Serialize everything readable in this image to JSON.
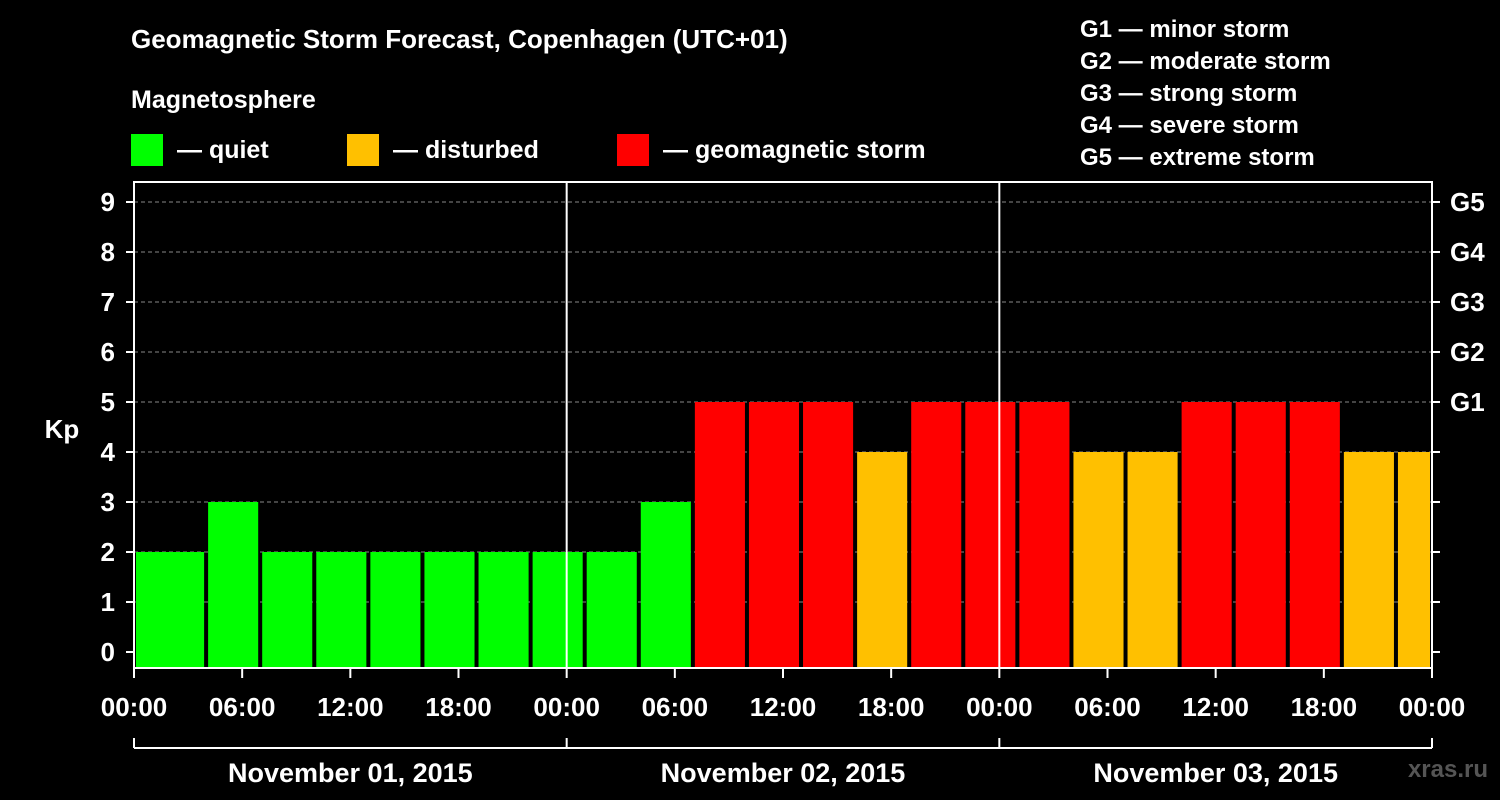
{
  "title": "Geomagnetic Storm Forecast, Copenhagen (UTC+01)",
  "subtitle": "Magnetosphere",
  "legend": [
    {
      "label": "— quiet",
      "color": "#00ff00"
    },
    {
      "label": "— disturbed",
      "color": "#ffc000"
    },
    {
      "label": "— geomagnetic storm",
      "color": "#ff0000"
    }
  ],
  "g_scale": [
    "G1 — minor storm",
    "G2 — moderate storm",
    "G3 — strong storm",
    "G4 — severe storm",
    "G5 — extreme storm"
  ],
  "watermark": "xras.ru",
  "chart_data": {
    "type": "bar",
    "ylabel": "Kp",
    "ylim": [
      0,
      9
    ],
    "yticks": [
      0,
      1,
      2,
      3,
      4,
      5,
      6,
      7,
      8,
      9
    ],
    "right_ticks": [
      {
        "kp": 5,
        "label": "G1"
      },
      {
        "kp": 6,
        "label": "G2"
      },
      {
        "kp": 7,
        "label": "G3"
      },
      {
        "kp": 8,
        "label": "G4"
      },
      {
        "kp": 9,
        "label": "G5"
      }
    ],
    "x_range_hours": [
      0,
      72
    ],
    "xtick_labels": [
      "00:00",
      "06:00",
      "12:00",
      "18:00",
      "00:00",
      "06:00",
      "12:00",
      "18:00",
      "00:00",
      "06:00",
      "12:00",
      "18:00",
      "00:00"
    ],
    "days": [
      "November 01, 2015",
      "November 02, 2015",
      "November 03, 2015"
    ],
    "grid": "horizontal dashed",
    "bar_interval_hours": 3,
    "bars": [
      {
        "start": 0,
        "kp": 2,
        "status": "quiet"
      },
      {
        "start": 1,
        "kp": 2,
        "status": "quiet"
      },
      {
        "start": 4,
        "kp": 3,
        "status": "quiet"
      },
      {
        "start": 7,
        "kp": 2,
        "status": "quiet"
      },
      {
        "start": 10,
        "kp": 2,
        "status": "quiet"
      },
      {
        "start": 13,
        "kp": 2,
        "status": "quiet"
      },
      {
        "start": 16,
        "kp": 2,
        "status": "quiet"
      },
      {
        "start": 19,
        "kp": 2,
        "status": "quiet"
      },
      {
        "start": 22,
        "kp": 2,
        "status": "quiet"
      },
      {
        "start": 25,
        "kp": 2,
        "status": "quiet"
      },
      {
        "start": 28,
        "kp": 3,
        "status": "quiet"
      },
      {
        "start": 31,
        "kp": 5,
        "status": "storm"
      },
      {
        "start": 34,
        "kp": 5,
        "status": "storm"
      },
      {
        "start": 37,
        "kp": 5,
        "status": "storm"
      },
      {
        "start": 40,
        "kp": 4,
        "status": "disturbed"
      },
      {
        "start": 43,
        "kp": 5,
        "status": "storm"
      },
      {
        "start": 46,
        "kp": 5,
        "status": "storm"
      },
      {
        "start": 49,
        "kp": 5,
        "status": "storm"
      },
      {
        "start": 52,
        "kp": 4,
        "status": "disturbed"
      },
      {
        "start": 55,
        "kp": 4,
        "status": "disturbed"
      },
      {
        "start": 58,
        "kp": 5,
        "status": "storm"
      },
      {
        "start": 61,
        "kp": 5,
        "status": "storm"
      },
      {
        "start": 64,
        "kp": 5,
        "status": "storm"
      },
      {
        "start": 67,
        "kp": 4,
        "status": "disturbed"
      },
      {
        "start": 70,
        "kp": 4,
        "status": "disturbed"
      }
    ],
    "status_colors": {
      "quiet": "#00ff00",
      "disturbed": "#ffc000",
      "storm": "#ff0000"
    }
  }
}
